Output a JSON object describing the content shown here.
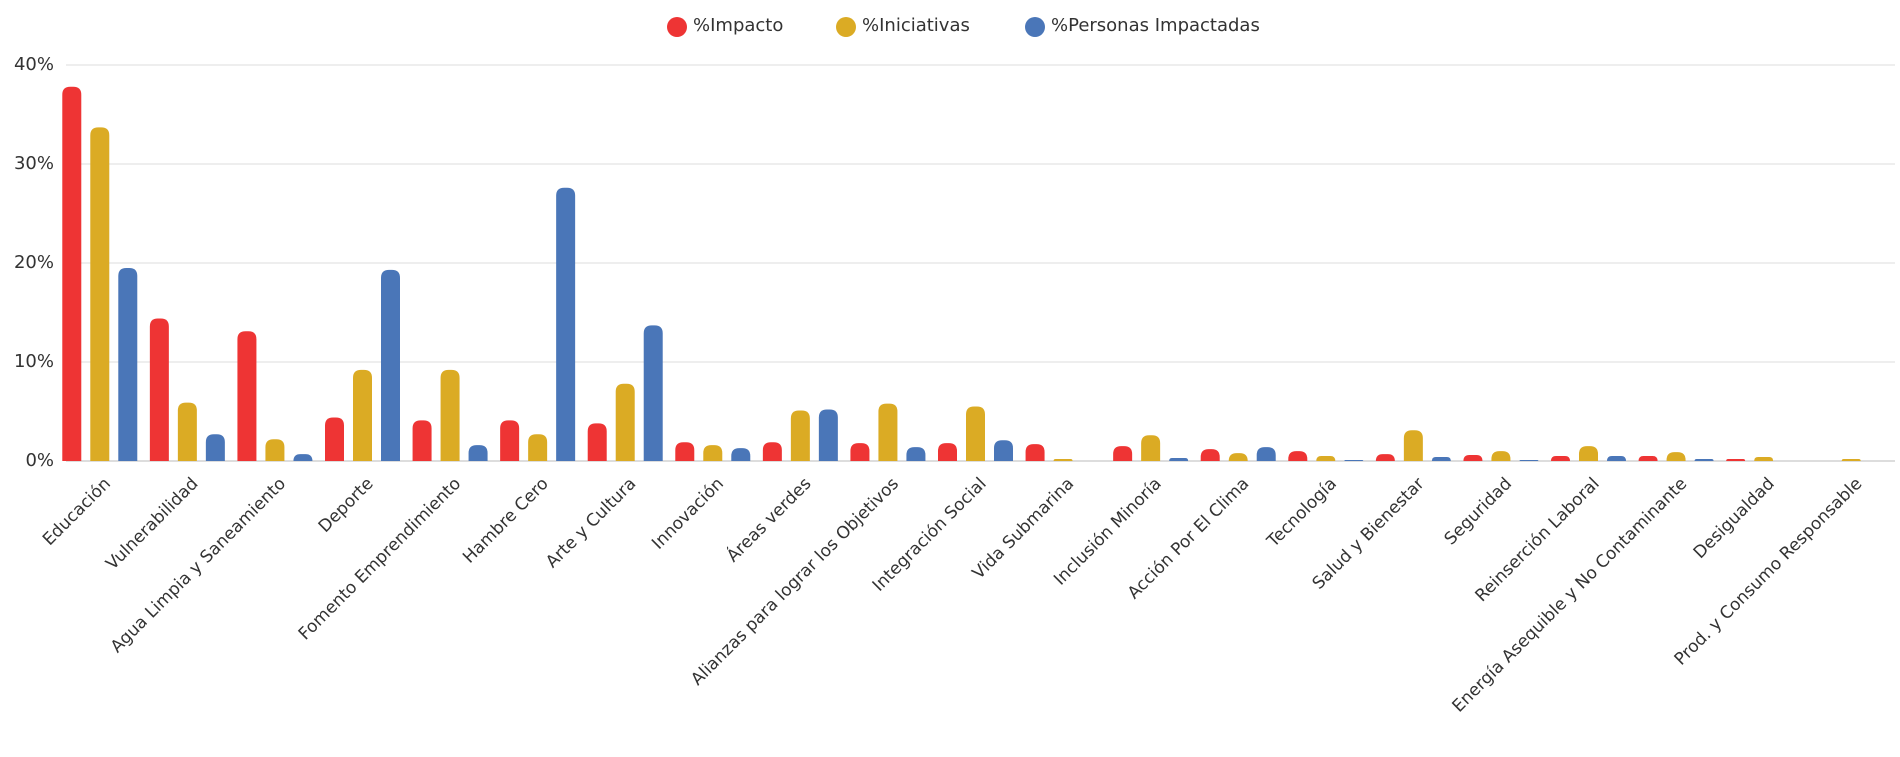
{
  "chart_data": {
    "type": "bar",
    "categories": [
      "Educación",
      "Vulnerabilidad",
      "Agua Limpia y Saneamiento",
      "Deporte",
      "Fomento Emprendimiento",
      "Hambre Cero",
      "Arte y Cultura",
      "Innovación",
      "Áreas verdes",
      "Alianzas para lograr los Objetivos",
      "Integración Social",
      "Vida Submarina",
      "Inclusión Minoría",
      "Acción Por El Clima",
      "Tecnología",
      "Salud y Bienestar",
      "Seguridad",
      "Reinserción Laboral",
      "Energía Asequible y No Contaminante",
      "Desigualdad",
      "Prod. y Consumo Responsable"
    ],
    "series": [
      {
        "name": "%Impacto",
        "color": "#ee3434",
        "values": [
          37.8,
          14.4,
          13.1,
          4.4,
          4.1,
          4.1,
          3.8,
          1.9,
          1.9,
          1.8,
          1.8,
          1.7,
          1.5,
          1.2,
          1.0,
          0.7,
          0.6,
          0.5,
          0.5,
          0.2,
          0
        ]
      },
      {
        "name": "%Iniciativas",
        "color": "#dbab24",
        "values": [
          33.7,
          5.9,
          2.2,
          9.2,
          9.2,
          2.7,
          7.8,
          1.6,
          5.1,
          5.8,
          5.5,
          0.2,
          2.6,
          0.8,
          0.5,
          3.1,
          1.0,
          1.5,
          0.9,
          0.4,
          0.2
        ]
      },
      {
        "name": "%Personas Impactadas",
        "color": "#4a76b8",
        "values": [
          19.5,
          2.7,
          0.7,
          19.3,
          1.6,
          27.6,
          13.7,
          1.3,
          5.2,
          1.4,
          2.1,
          0,
          0.3,
          1.4,
          0.1,
          0.4,
          0.1,
          0.5,
          0.2,
          0,
          0
        ]
      }
    ],
    "ylim": [
      0,
      40
    ],
    "yticks": [
      {
        "value": 0,
        "label": "0%"
      },
      {
        "value": 10,
        "label": "10%"
      },
      {
        "value": 20,
        "label": "20%"
      },
      {
        "value": 30,
        "label": "30%"
      },
      {
        "value": 40,
        "label": "40%"
      }
    ],
    "grid": true,
    "legend": "top"
  }
}
